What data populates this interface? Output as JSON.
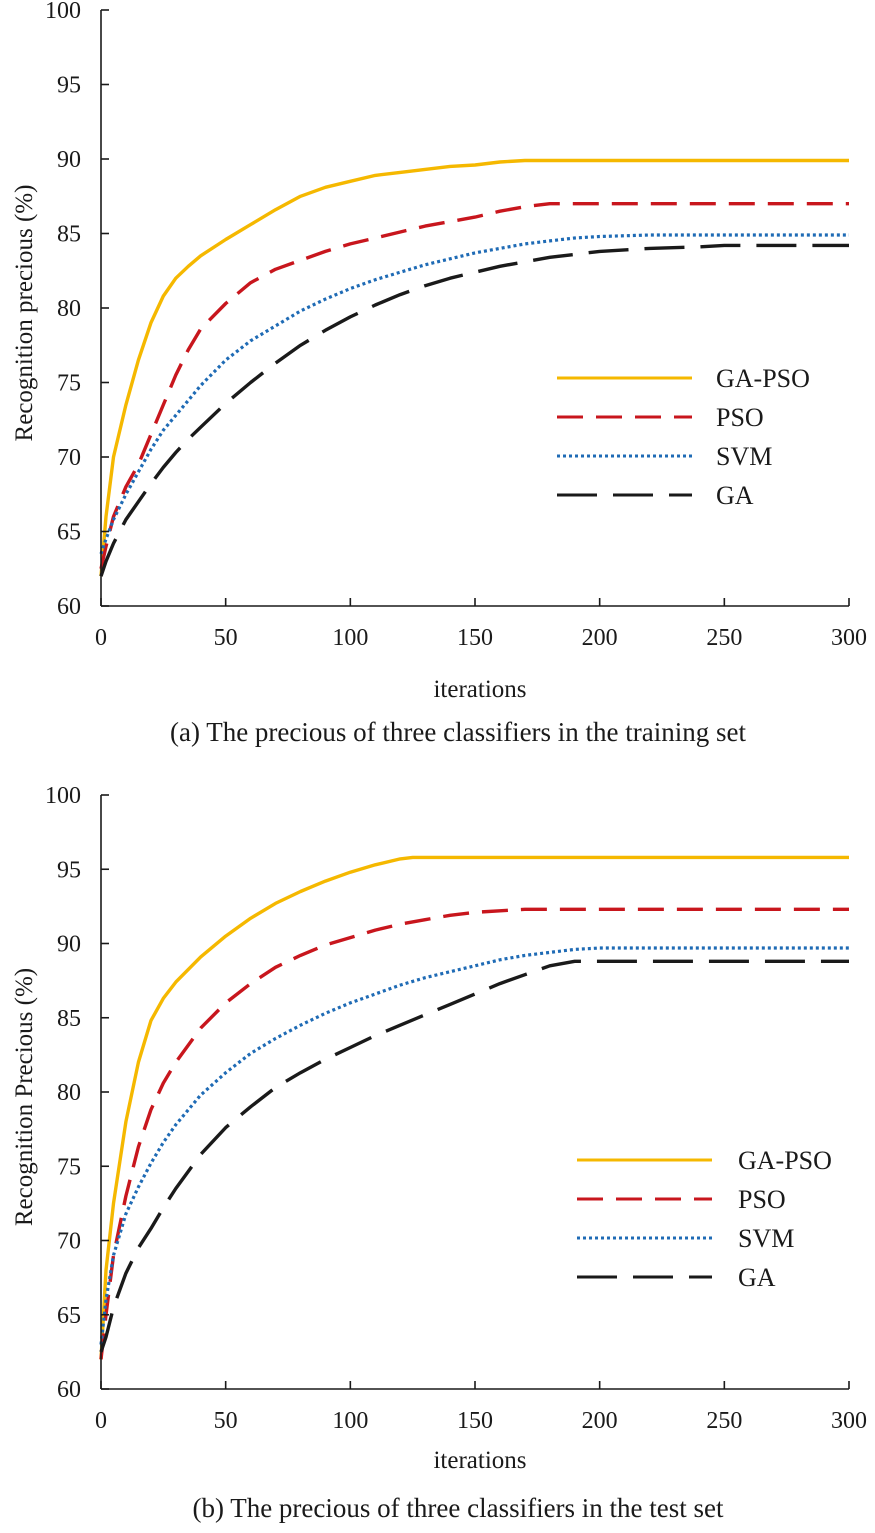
{
  "chart_data": [
    {
      "type": "line",
      "caption": "(a) The precious of three classifiers in the training set",
      "xlabel": "iterations",
      "ylabel": "Recognition precious (%)",
      "xlim": [
        0,
        300
      ],
      "ylim": [
        60,
        100
      ],
      "xticks": [
        0,
        50,
        100,
        150,
        200,
        250,
        300
      ],
      "yticks": [
        60,
        65,
        70,
        75,
        80,
        85,
        90,
        95,
        100
      ],
      "grid": false,
      "legend_position": "center-right",
      "series": [
        {
          "name": "GA-PSO",
          "color": "#f5b800",
          "style": "solid",
          "x": [
            0,
            2,
            5,
            10,
            15,
            20,
            25,
            30,
            35,
            40,
            50,
            60,
            70,
            80,
            90,
            100,
            110,
            120,
            130,
            140,
            150,
            160,
            170,
            180,
            200,
            250,
            300
          ],
          "y": [
            62,
            66,
            70,
            73.5,
            76.5,
            79,
            80.8,
            82,
            82.8,
            83.5,
            84.6,
            85.6,
            86.6,
            87.5,
            88.1,
            88.5,
            88.9,
            89.1,
            89.3,
            89.5,
            89.6,
            89.8,
            89.9,
            89.9,
            89.9,
            89.9,
            89.9
          ]
        },
        {
          "name": "PSO",
          "color": "#c8161d",
          "style": "dash",
          "x": [
            0,
            2,
            5,
            10,
            15,
            20,
            25,
            30,
            35,
            40,
            50,
            60,
            70,
            80,
            90,
            100,
            110,
            120,
            130,
            140,
            150,
            160,
            170,
            180,
            200,
            250,
            300
          ],
          "y": [
            62.5,
            64,
            66,
            68,
            69.5,
            71.5,
            73.5,
            75.5,
            77.2,
            78.6,
            80.3,
            81.7,
            82.6,
            83.2,
            83.8,
            84.3,
            84.7,
            85.1,
            85.5,
            85.8,
            86.1,
            86.5,
            86.8,
            87,
            87,
            87,
            87
          ]
        },
        {
          "name": "SVM",
          "color": "#1f6bb5",
          "style": "dot",
          "x": [
            0,
            2,
            5,
            10,
            15,
            20,
            25,
            30,
            35,
            40,
            50,
            60,
            70,
            80,
            90,
            100,
            110,
            120,
            130,
            140,
            150,
            160,
            170,
            180,
            190,
            200,
            220,
            250,
            300
          ],
          "y": [
            63.5,
            64.5,
            65.8,
            67.5,
            69,
            70.5,
            71.8,
            72.8,
            73.8,
            74.8,
            76.5,
            77.8,
            78.8,
            79.8,
            80.6,
            81.3,
            81.9,
            82.4,
            82.9,
            83.3,
            83.7,
            84,
            84.3,
            84.5,
            84.7,
            84.8,
            84.9,
            84.9,
            84.9
          ]
        },
        {
          "name": "GA",
          "color": "#1a1a1a",
          "style": "longdash",
          "x": [
            0,
            2,
            5,
            10,
            15,
            20,
            25,
            30,
            35,
            40,
            50,
            60,
            70,
            80,
            90,
            100,
            110,
            120,
            130,
            140,
            150,
            160,
            170,
            180,
            190,
            200,
            220,
            240,
            250,
            300
          ],
          "y": [
            62,
            63,
            64.2,
            65.8,
            67,
            68.2,
            69.3,
            70.3,
            71.2,
            72,
            73.6,
            75,
            76.3,
            77.5,
            78.5,
            79.4,
            80.2,
            80.9,
            81.5,
            82,
            82.4,
            82.8,
            83.1,
            83.4,
            83.6,
            83.8,
            84,
            84.1,
            84.2,
            84.2
          ]
        }
      ]
    },
    {
      "type": "line",
      "caption": "(b) The precious of three classifiers in the test set",
      "xlabel": "iterations",
      "ylabel": "Recognition Precious (%)",
      "xlim": [
        0,
        300
      ],
      "ylim": [
        60,
        100
      ],
      "xticks": [
        0,
        50,
        100,
        150,
        200,
        250,
        300
      ],
      "yticks": [
        60,
        65,
        70,
        75,
        80,
        85,
        90,
        95,
        100
      ],
      "grid": false,
      "legend_position": "center-right",
      "series": [
        {
          "name": "GA-PSO",
          "color": "#f5b800",
          "style": "solid",
          "x": [
            0,
            2,
            5,
            10,
            15,
            20,
            25,
            30,
            40,
            50,
            60,
            70,
            80,
            90,
            100,
            110,
            120,
            125,
            150,
            200,
            250,
            300
          ],
          "y": [
            62,
            68,
            72.5,
            78,
            82,
            84.8,
            86.3,
            87.4,
            89.1,
            90.5,
            91.7,
            92.7,
            93.5,
            94.2,
            94.8,
            95.3,
            95.7,
            95.8,
            95.8,
            95.8,
            95.8,
            95.8
          ]
        },
        {
          "name": "PSO",
          "color": "#c8161d",
          "style": "dash",
          "x": [
            0,
            2,
            5,
            10,
            15,
            20,
            25,
            30,
            40,
            50,
            60,
            70,
            80,
            90,
            100,
            110,
            120,
            130,
            140,
            150,
            160,
            170,
            180,
            200,
            250,
            300
          ],
          "y": [
            62,
            65,
            69,
            73,
            76.3,
            78.8,
            80.6,
            82,
            84.3,
            86,
            87.3,
            88.4,
            89.2,
            89.9,
            90.4,
            90.9,
            91.3,
            91.6,
            91.9,
            92.1,
            92.2,
            92.3,
            92.3,
            92.3,
            92.3,
            92.3
          ]
        },
        {
          "name": "SVM",
          "color": "#1f6bb5",
          "style": "dot",
          "x": [
            0,
            2,
            5,
            10,
            15,
            20,
            25,
            30,
            40,
            50,
            60,
            70,
            80,
            90,
            100,
            110,
            120,
            130,
            140,
            150,
            160,
            170,
            180,
            190,
            200,
            250,
            300
          ],
          "y": [
            63,
            66,
            69,
            71.8,
            73.6,
            75.2,
            76.6,
            77.8,
            79.8,
            81.3,
            82.6,
            83.6,
            84.5,
            85.3,
            86,
            86.6,
            87.2,
            87.7,
            88.1,
            88.5,
            88.9,
            89.2,
            89.4,
            89.6,
            89.7,
            89.7,
            89.7
          ]
        },
        {
          "name": "GA",
          "color": "#1a1a1a",
          "style": "longdash",
          "x": [
            0,
            2,
            5,
            10,
            15,
            20,
            25,
            30,
            40,
            50,
            60,
            70,
            80,
            90,
            100,
            110,
            120,
            130,
            140,
            150,
            160,
            170,
            180,
            190,
            200,
            250,
            300
          ],
          "y": [
            62.5,
            63.5,
            65.5,
            67.8,
            69.5,
            70.8,
            72.2,
            73.5,
            75.8,
            77.6,
            79,
            80.3,
            81.3,
            82.2,
            83,
            83.8,
            84.5,
            85.2,
            85.9,
            86.6,
            87.3,
            87.9,
            88.5,
            88.8,
            88.8,
            88.8,
            88.8
          ]
        }
      ]
    }
  ]
}
